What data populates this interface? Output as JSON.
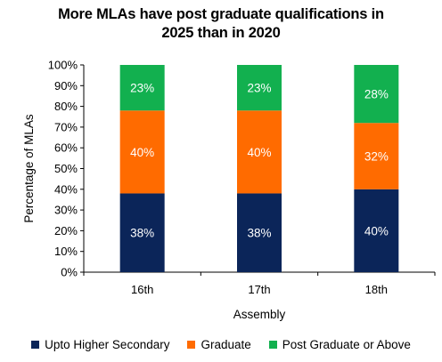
{
  "chart_data": {
    "type": "bar",
    "stacked": true,
    "percent": true,
    "title_lines": [
      "More MLAs have post graduate qualifications in",
      "2025 than in 2020"
    ],
    "xlabel": "Assembly",
    "ylabel": "Percentage of MLAs",
    "ylim": [
      0,
      100
    ],
    "yticks": [
      "0%",
      "10%",
      "20%",
      "30%",
      "40%",
      "50%",
      "60%",
      "70%",
      "80%",
      "90%",
      "100%"
    ],
    "categories": [
      "16th",
      "17th",
      "18th"
    ],
    "series": [
      {
        "name": "Upto Higher Secondary",
        "color": "#0b2559",
        "values": [
          38,
          38,
          40
        ],
        "labels": [
          "38%",
          "38%",
          "40%"
        ]
      },
      {
        "name": "Graduate",
        "color": "#ff6b00",
        "values": [
          40,
          40,
          32
        ],
        "labels": [
          "40%",
          "40%",
          "32%"
        ]
      },
      {
        "name": "Post Graduate or Above",
        "color": "#12b04f",
        "values": [
          23,
          23,
          28
        ],
        "labels": [
          "23%",
          "23%",
          "28%"
        ]
      }
    ],
    "legend_position": "bottom",
    "grid": false
  }
}
